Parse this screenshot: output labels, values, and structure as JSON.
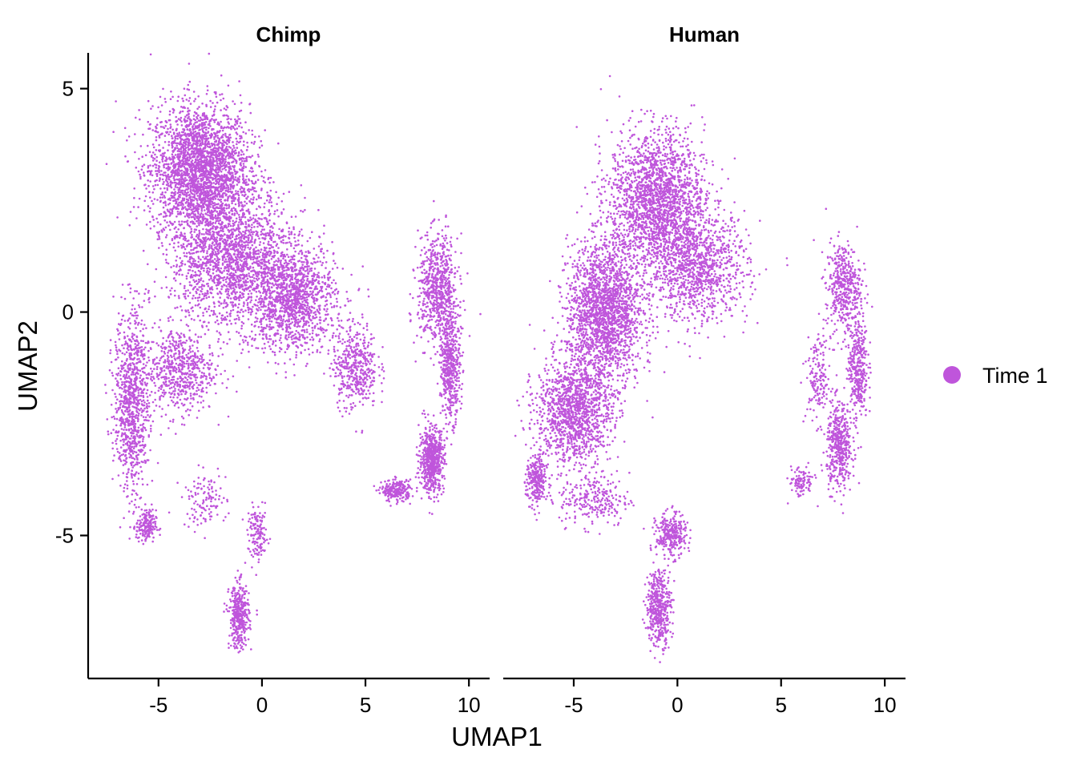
{
  "chart_data": {
    "type": "scatter",
    "xlabel": "UMAP1",
    "ylabel": "UMAP2",
    "xlim": [
      -8.4,
      11.0
    ],
    "ylim": [
      -8.2,
      5.8
    ],
    "x_ticks": [
      -5,
      0,
      5,
      10
    ],
    "y_ticks": [
      5,
      0,
      -5
    ],
    "x_tick_labels": [
      "-5",
      "0",
      "5",
      "10"
    ],
    "y_tick_labels": [
      "5",
      "0",
      "-5"
    ],
    "grid": false,
    "legend_position": "right",
    "point_color": "#BF55DB",
    "legend": [
      {
        "label": "Time 1",
        "color": "#BF55DB"
      }
    ],
    "panels": [
      {
        "title": "Chimp",
        "clusters": [
          {
            "cx": -3.0,
            "cy": 3.2,
            "sx": 2.0,
            "sy": 1.2,
            "n": 2600
          },
          {
            "cx": -1.5,
            "cy": 1.2,
            "sx": 2.4,
            "sy": 1.3,
            "n": 1900
          },
          {
            "cx": 1.5,
            "cy": 0.3,
            "sx": 1.7,
            "sy": 1.0,
            "n": 1300
          },
          {
            "cx": -6.3,
            "cy": -2.0,
            "sx": 0.7,
            "sy": 1.7,
            "n": 900
          },
          {
            "cx": -5.6,
            "cy": -4.8,
            "sx": 0.4,
            "sy": 0.3,
            "n": 180
          },
          {
            "cx": -4.0,
            "cy": -1.3,
            "sx": 1.4,
            "sy": 0.8,
            "n": 600
          },
          {
            "cx": 4.5,
            "cy": -1.2,
            "sx": 0.9,
            "sy": 0.8,
            "n": 450
          },
          {
            "cx": 8.5,
            "cy": 0.5,
            "sx": 0.8,
            "sy": 1.0,
            "n": 700
          },
          {
            "cx": 9.1,
            "cy": -1.2,
            "sx": 0.4,
            "sy": 1.0,
            "n": 500
          },
          {
            "cx": 8.2,
            "cy": -3.3,
            "sx": 0.5,
            "sy": 0.6,
            "n": 600
          },
          {
            "cx": 6.5,
            "cy": -4.0,
            "sx": 0.6,
            "sy": 0.2,
            "n": 220
          },
          {
            "cx": -1.1,
            "cy": -6.8,
            "sx": 0.4,
            "sy": 0.6,
            "n": 380
          },
          {
            "cx": -0.2,
            "cy": -5.0,
            "sx": 0.4,
            "sy": 0.5,
            "n": 140
          },
          {
            "cx": -2.8,
            "cy": -4.2,
            "sx": 0.9,
            "sy": 0.5,
            "n": 120
          }
        ]
      },
      {
        "title": "Human",
        "clusters": [
          {
            "cx": -1.0,
            "cy": 2.5,
            "sx": 1.9,
            "sy": 1.3,
            "n": 2000
          },
          {
            "cx": -3.5,
            "cy": 0.0,
            "sx": 1.5,
            "sy": 1.3,
            "n": 2000
          },
          {
            "cx": 1.0,
            "cy": 1.0,
            "sx": 2.0,
            "sy": 1.0,
            "n": 1100
          },
          {
            "cx": -5.0,
            "cy": -2.2,
            "sx": 1.5,
            "sy": 1.0,
            "n": 1300
          },
          {
            "cx": -6.8,
            "cy": -3.8,
            "sx": 0.4,
            "sy": 0.5,
            "n": 260
          },
          {
            "cx": -4.0,
            "cy": -4.2,
            "sx": 1.4,
            "sy": 0.5,
            "n": 250
          },
          {
            "cx": 8.0,
            "cy": 0.6,
            "sx": 0.7,
            "sy": 0.8,
            "n": 420
          },
          {
            "cx": 8.7,
            "cy": -1.2,
            "sx": 0.4,
            "sy": 1.0,
            "n": 380
          },
          {
            "cx": 7.8,
            "cy": -3.0,
            "sx": 0.5,
            "sy": 0.8,
            "n": 450
          },
          {
            "cx": 6.8,
            "cy": -1.5,
            "sx": 0.5,
            "sy": 0.8,
            "n": 160
          },
          {
            "cx": 6.0,
            "cy": -3.8,
            "sx": 0.5,
            "sy": 0.3,
            "n": 100
          },
          {
            "cx": -0.3,
            "cy": -5.0,
            "sx": 0.6,
            "sy": 0.4,
            "n": 300
          },
          {
            "cx": -0.9,
            "cy": -6.6,
            "sx": 0.5,
            "sy": 0.7,
            "n": 450
          }
        ]
      }
    ]
  }
}
